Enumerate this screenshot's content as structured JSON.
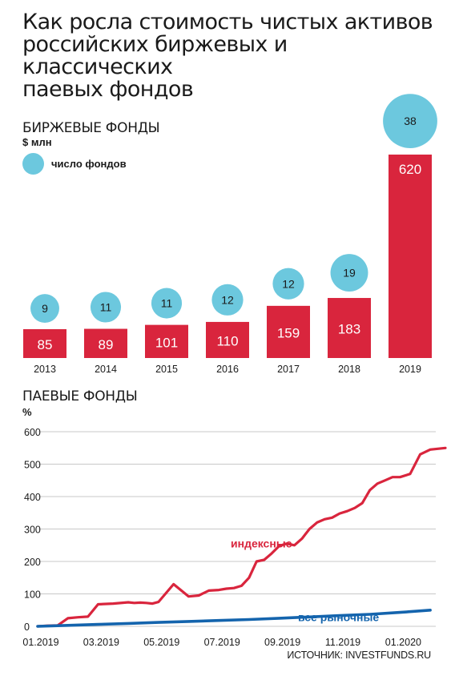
{
  "title_lines": [
    "Как росла стоимость чистых активов",
    "российских биржевых и классических",
    "паевых фондов"
  ],
  "source": "ИСТОЧНИК: INVESTFUNDS.RU",
  "colors": {
    "red": "#d9253d",
    "blue": "#1464ad",
    "circle": "#6cc8de",
    "grid": "#c8c8c8"
  },
  "chart_data": [
    {
      "type": "bar",
      "title": "БИРЖЕВЫЕ ФОНДЫ",
      "ylabel": "$ млн",
      "legend": "число фондов",
      "categories": [
        "2013",
        "2014",
        "2015",
        "2016",
        "2017",
        "2018",
        "2019"
      ],
      "values": [
        85,
        89,
        101,
        110,
        159,
        183,
        620
      ],
      "fund_counts": [
        9,
        11,
        11,
        12,
        12,
        19,
        38
      ]
    },
    {
      "type": "line",
      "title": "ПАЕВЫЕ ФОНДЫ",
      "ylabel": "%",
      "ylim": [
        0,
        600
      ],
      "yticks": [
        0,
        100,
        200,
        300,
        400,
        500,
        600
      ],
      "xticks": [
        "01.2019",
        "03.2019",
        "05.2019",
        "07.2019",
        "09.2019",
        "11.2019",
        "01.2020"
      ],
      "grid": true,
      "series": [
        {
          "name": "индексные",
          "x": [
            "01.2019",
            "01.2019",
            "01.2019",
            "02.2019",
            "02.2019",
            "02.2019",
            "03.2019",
            "03.2019",
            "04.2019",
            "04.2019",
            "04.2019",
            "04.2019",
            "04.2019",
            "05.2019",
            "05.2019",
            "06.2019",
            "06.2019",
            "06.2019",
            "07.2019",
            "07.2019",
            "07.2019",
            "07.2019",
            "08.2019",
            "08.2019",
            "08.2019",
            "08.2019",
            "09.2019",
            "09.2019",
            "09.2019",
            "09.2019",
            "10.2019",
            "10.2019",
            "10.2019",
            "10.2019",
            "11.2019",
            "11.2019",
            "11.2019",
            "11.2019",
            "12.2019",
            "12.2019",
            "12.2019",
            "12.2019",
            "01.2020",
            "01.2020",
            "01.2020",
            "02.2020",
            "02.2020"
          ],
          "values": [
            0,
            2,
            3,
            25,
            28,
            30,
            68,
            70,
            74,
            72,
            73,
            72,
            70,
            75,
            130,
            92,
            95,
            110,
            112,
            116,
            118,
            125,
            150,
            200,
            205,
            225,
            248,
            255,
            250,
            270,
            300,
            320,
            330,
            335,
            348,
            355,
            365,
            380,
            420,
            440,
            450,
            460,
            460,
            470,
            530,
            545,
            550
          ]
        },
        {
          "name": "все рыночные",
          "x": [
            "01.2019",
            "02.2019",
            "03.2019",
            "04.2019",
            "05.2019",
            "06.2019",
            "07.2019",
            "08.2019",
            "09.2019",
            "10.2019",
            "11.2019",
            "12.2019",
            "01.2020",
            "02.2020"
          ],
          "values": [
            0,
            3,
            6,
            9,
            12,
            15,
            18,
            21,
            25,
            29,
            33,
            37,
            43,
            50
          ]
        }
      ]
    }
  ]
}
